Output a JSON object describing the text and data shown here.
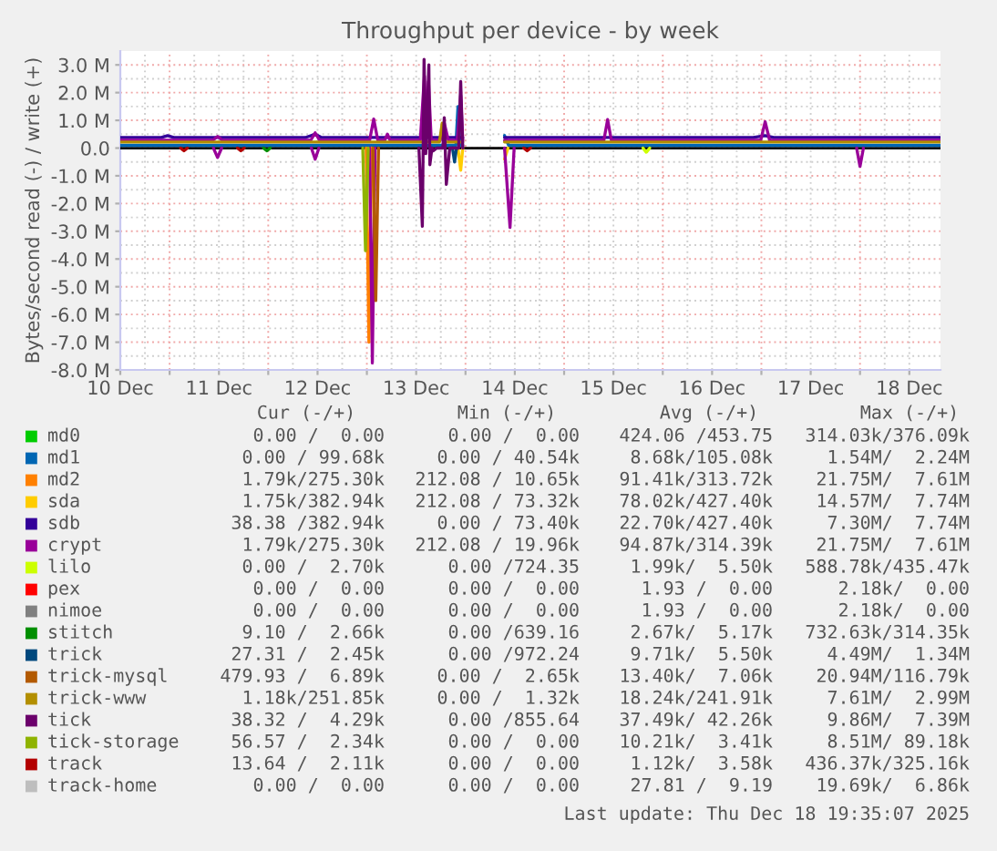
{
  "chart_data": {
    "type": "line",
    "title": "Throughput per device - by week",
    "ylabel": "Bytes/second read (-) / write (+)",
    "xlim": [
      "2025-12-10T12:00",
      "2025-12-18T19:35"
    ],
    "xticks": [
      {
        "value": "2025-12-10T12:00",
        "label": "10 Dec"
      },
      {
        "value": "2025-12-11T00:00",
        "label": null
      },
      {
        "value": "2025-12-11T12:00",
        "label": "11 Dec"
      },
      {
        "value": "2025-12-12T00:00",
        "label": null
      },
      {
        "value": "2025-12-12T12:00",
        "label": "12 Dec"
      },
      {
        "value": "2025-12-13T00:00",
        "label": null
      },
      {
        "value": "2025-12-13T12:00",
        "label": "13 Dec"
      },
      {
        "value": "2025-12-14T00:00",
        "label": null
      },
      {
        "value": "2025-12-14T12:00",
        "label": "14 Dec"
      },
      {
        "value": "2025-12-15T00:00",
        "label": null
      },
      {
        "value": "2025-12-15T12:00",
        "label": "15 Dec"
      },
      {
        "value": "2025-12-16T00:00",
        "label": null
      },
      {
        "value": "2025-12-16T12:00",
        "label": "16 Dec"
      },
      {
        "value": "2025-12-17T00:00",
        "label": null
      },
      {
        "value": "2025-12-17T12:00",
        "label": "17 Dec"
      },
      {
        "value": "2025-12-18T00:00",
        "label": null
      },
      {
        "value": "2025-12-18T12:00",
        "label": "18 Dec"
      }
    ],
    "ylim": [
      -8,
      3.5
    ],
    "yticks": [
      {
        "value": 3,
        "label": "3.0 M"
      },
      {
        "value": 2,
        "label": "2.0 M"
      },
      {
        "value": 1,
        "label": "1.0 M"
      },
      {
        "value": 0,
        "label": "0.0"
      },
      {
        "value": -1,
        "label": "-1.0 M"
      },
      {
        "value": -2,
        "label": "-2.0 M"
      },
      {
        "value": -3,
        "label": "-3.0 M"
      },
      {
        "value": -4,
        "label": "-4.0 M"
      },
      {
        "value": -5,
        "label": "-5.0 M"
      },
      {
        "value": -6,
        "label": "-6.0 M"
      },
      {
        "value": -7,
        "label": "-7.0 M"
      },
      {
        "value": -8,
        "label": "-8.0 M"
      }
    ],
    "grid": true,
    "legend": "bottom",
    "ref_lines": [
      {
        "axis": "y",
        "value": 0,
        "color": "#000000"
      }
    ],
    "series": [
      {
        "name": "md0",
        "color": "#00cc00"
      },
      {
        "name": "md1",
        "color": "#0066b3",
        "x": [
          "2025-12-10T12:00",
          "2025-12-13T21:40",
          "2025-12-13T22:10",
          "2025-12-13T22:40",
          "2025-12-13T23:20",
          "2025-12-14T04:00",
          "2025-12-14T09:30",
          "2025-12-14T10:30",
          "2025-12-18T19:35"
        ],
        "values": [
          0.1,
          0.1,
          1.5,
          0.1,
          0.1,
          null,
          0.45,
          0.1,
          0.1
        ]
      },
      {
        "name": "md2",
        "color": "#ff8000",
        "x": [
          "2025-12-12T23:50",
          "2025-12-13T00:30",
          "2025-12-13T01:10"
        ],
        "values": [
          0,
          -7.0,
          0
        ]
      },
      {
        "name": "sda",
        "color": "#ffcc00",
        "x": [
          "2025-12-13T22:10",
          "2025-12-13T22:50",
          "2025-12-13T23:20",
          "2025-12-14T04:00",
          "2025-12-14T09:30",
          "2025-12-14T10:20"
        ],
        "values": [
          0,
          -0.8,
          0,
          null,
          -0.4,
          0
        ]
      },
      {
        "name": "sdb",
        "color": "#330099",
        "x": [
          "2025-12-10T12:00",
          "2025-12-10T22:00",
          "2025-12-10T23:30",
          "2025-12-11T01:00",
          "2025-12-12T09:00",
          "2025-12-12T11:25",
          "2025-12-12T13:00",
          "2025-12-13T23:20",
          "2025-12-14T04:00",
          "2025-12-14T09:30",
          "2025-12-16T22:00",
          "2025-12-17T00:55",
          "2025-12-17T03:00",
          "2025-12-18T19:35"
        ],
        "values": [
          0.38,
          0.38,
          0.45,
          0.38,
          0.38,
          0.5,
          0.38,
          0.38,
          null,
          0.38,
          0.38,
          0.45,
          0.38,
          0.38
        ]
      },
      {
        "name": "crypt",
        "color": "#990099",
        "x": [
          "2025-12-10T12:00",
          "2025-12-11T10:30",
          "2025-12-11T11:40",
          "2025-12-11T12:50",
          "2025-12-12T10:20",
          "2025-12-12T11:25",
          "2025-12-12T12:30",
          "2025-12-13T00:40",
          "2025-12-13T01:40",
          "2025-12-13T02:40",
          "2025-12-13T04:20",
          "2025-12-13T05:00",
          "2025-12-13T05:40",
          "2025-12-13T13:00",
          "2025-12-13T14:00",
          "2025-12-13T14:30",
          "2025-12-13T15:00",
          "2025-12-13T15:40",
          "2025-12-13T17:50",
          "2025-12-13T18:50",
          "2025-12-13T19:50",
          "2025-12-13T22:00",
          "2025-12-13T22:50",
          "2025-12-13T23:20",
          "2025-12-14T04:00",
          "2025-12-14T09:30",
          "2025-12-15T09:40",
          "2025-12-15T10:35",
          "2025-12-15T11:30",
          "2025-12-16T23:50",
          "2025-12-17T00:55",
          "2025-12-17T02:00",
          "2025-12-18T19:35"
        ],
        "values": [
          0.28,
          0.28,
          0.42,
          0.28,
          0.28,
          0.55,
          0.28,
          0.28,
          1.05,
          0.28,
          0.28,
          0.5,
          0.28,
          0.28,
          2.6,
          0.4,
          2.4,
          0.28,
          0.28,
          0.9,
          0.28,
          0.28,
          1.9,
          0.28,
          null,
          0.28,
          0.28,
          1.03,
          0.28,
          0.28,
          0.95,
          0.28,
          0.28
        ]
      },
      {
        "color": "#990099",
        "x": [
          "2025-12-11T10:40",
          "2025-12-11T11:40",
          "2025-12-11T12:40",
          "2025-12-11T18:00",
          "2025-12-12T10:30",
          "2025-12-12T11:25",
          "2025-12-12T12:20",
          "2025-12-12T18:00",
          "2025-12-13T00:40",
          "2025-12-13T01:20",
          "2025-12-13T02:00",
          "2025-12-13T12:00",
          "2025-12-14T09:30",
          "2025-12-14T10:50",
          "2025-12-14T11:50",
          "2025-12-15T12:00",
          "2025-12-17T23:10",
          "2025-12-18T00:00",
          "2025-12-18T00:50"
        ],
        "values": [
          0,
          -0.34,
          0,
          null,
          0,
          -0.4,
          0,
          null,
          0,
          -7.75,
          0,
          null,
          0,
          -2.86,
          0,
          null,
          0,
          -0.66,
          0
        ]
      },
      {
        "name": "lilo",
        "color": "#ccff00",
        "x": [
          "2025-12-15T19:10",
          "2025-12-15T20:00",
          "2025-12-15T20:50"
        ],
        "values": [
          0,
          -0.15,
          0
        ]
      },
      {
        "name": "pex",
        "color": "#ff0000"
      },
      {
        "name": "nimoe",
        "color": "#808080"
      },
      {
        "name": "stitch",
        "color": "#008f00",
        "x": [
          "2025-12-11T22:50",
          "2025-12-11T23:40",
          "2025-12-12T00:30"
        ],
        "values": [
          0,
          -0.1,
          0
        ]
      },
      {
        "name": "trick",
        "color": "#00487d",
        "x": [
          "2025-12-13T20:50",
          "2025-12-13T21:20",
          "2025-12-13T21:50"
        ],
        "values": [
          0,
          -0.5,
          0
        ]
      },
      {
        "name": "trick-mysql",
        "color": "#b35a00",
        "x": [
          "2025-12-13T01:30",
          "2025-12-13T02:10",
          "2025-12-13T02:50"
        ],
        "values": [
          0,
          -5.5,
          0
        ]
      },
      {
        "name": "trick-www",
        "color": "#b38f00",
        "x": [
          "2025-12-10T12:00",
          "2025-12-13T17:40",
          "2025-12-13T18:20",
          "2025-12-13T19:00",
          "2025-12-13T23:20",
          "2025-12-14T04:00",
          "2025-12-14T09:30",
          "2025-12-18T19:35"
        ],
        "values": [
          0.22,
          0.22,
          0.9,
          0.22,
          0.22,
          null,
          0.22,
          0.22
        ]
      },
      {
        "name": "tick",
        "color": "#6b006b",
        "x": [
          "2025-12-13T12:40",
          "2025-12-13T13:30",
          "2025-12-13T13:55",
          "2025-12-13T14:20",
          "2025-12-13T14:30",
          "2025-12-13T15:05",
          "2025-12-13T15:20",
          "2025-12-13T15:50",
          "2025-12-13T16:10",
          "2025-12-13T17:00",
          "2025-12-13T18:30",
          "2025-12-13T18:50",
          "2025-12-13T19:20",
          "2025-12-13T20:10",
          "2025-12-13T22:20",
          "2025-12-13T22:50",
          "2025-12-13T23:20"
        ],
        "values": [
          0,
          -2.82,
          3.2,
          -0.2,
          0.3,
          3.0,
          -0.6,
          0,
          -0.1,
          0,
          0,
          1.1,
          -1.31,
          0,
          0,
          2.4,
          0
        ]
      },
      {
        "name": "tick-storage",
        "color": "#8fb300",
        "x": [
          "2025-12-12T23:00",
          "2025-12-12T23:40",
          "2025-12-13T00:20"
        ],
        "values": [
          0,
          -3.7,
          0
        ]
      },
      {
        "name": "track",
        "color": "#b30000",
        "x": [
          "2025-12-11T02:40",
          "2025-12-11T03:30",
          "2025-12-11T04:20",
          "2025-12-11T10:00",
          "2025-12-11T16:30",
          "2025-12-11T17:20",
          "2025-12-11T18:10",
          "2025-12-13T12:00",
          "2025-12-14T14:10",
          "2025-12-14T15:00",
          "2025-12-14T15:50"
        ],
        "values": [
          0,
          -0.1,
          0,
          null,
          0,
          -0.1,
          0,
          null,
          0,
          -0.1,
          0
        ]
      },
      {
        "name": "track-home",
        "color": "#bebebe"
      }
    ],
    "annotations": [
      "Cur (-/+)",
      "Min (-/+)",
      "Avg (-/+)",
      "Max (-/+)",
      "0.00 /  0.00",
      "0.00 /  0.00",
      "424.06 /453.75",
      "314.03k/376.09k",
      "0.00 / 99.68k",
      "0.00 / 40.54k",
      "8.68k/105.08k",
      "1.54M/  2.24M",
      "1.79k/275.30k",
      "212.08 / 10.65k",
      "91.41k/313.72k",
      "21.75M/  7.61M",
      "1.75k/382.94k",
      "212.08 / 73.32k",
      "78.02k/427.40k",
      "14.57M/  7.74M",
      "38.38 /382.94k",
      "0.00 / 73.40k",
      "22.70k/427.40k",
      "7.30M/  7.74M",
      "1.79k/275.30k",
      "212.08 / 19.96k",
      "94.87k/314.39k",
      "21.75M/  7.61M",
      "0.00 /  2.70k",
      "0.00 /724.35",
      "1.99k/  5.50k",
      "588.78k/435.47k",
      "0.00 /  0.00",
      "0.00 /  0.00",
      "1.93 /  0.00",
      "2.18k/  0.00",
      "0.00 /  0.00",
      "0.00 /  0.00",
      "1.93 /  0.00",
      "2.18k/  0.00",
      "9.10 /  2.66k",
      "0.00 /639.16",
      "2.67k/  5.17k",
      "732.63k/314.35k",
      "27.31 /  2.45k",
      "0.00 /972.24",
      "9.71k/  5.50k",
      "4.49M/  1.34M",
      "479.93 /  6.89k",
      "0.00 /  2.65k",
      "13.40k/  7.06k",
      "20.94M/116.79k",
      "1.18k/251.85k",
      "0.00 /  1.32k",
      "18.24k/241.91k",
      "7.61M/  2.99M",
      "38.32 /  4.29k",
      "0.00 /855.64",
      "37.49k/ 42.26k",
      "9.86M/  7.39M",
      "56.57 /  2.34k",
      "0.00 /  0.00",
      "10.21k/  3.41k",
      "8.51M/ 89.18k",
      "13.64 /  2.11k",
      "0.00 /  0.00",
      "1.12k/  3.58k",
      "436.37k/325.16k",
      "0.00 /  0.00",
      "0.00 /  0.00",
      "27.81 /  9.19",
      "19.69k/  6.86k",
      "Last update: Thu Dec 18 19:35:07 2025"
    ]
  }
}
